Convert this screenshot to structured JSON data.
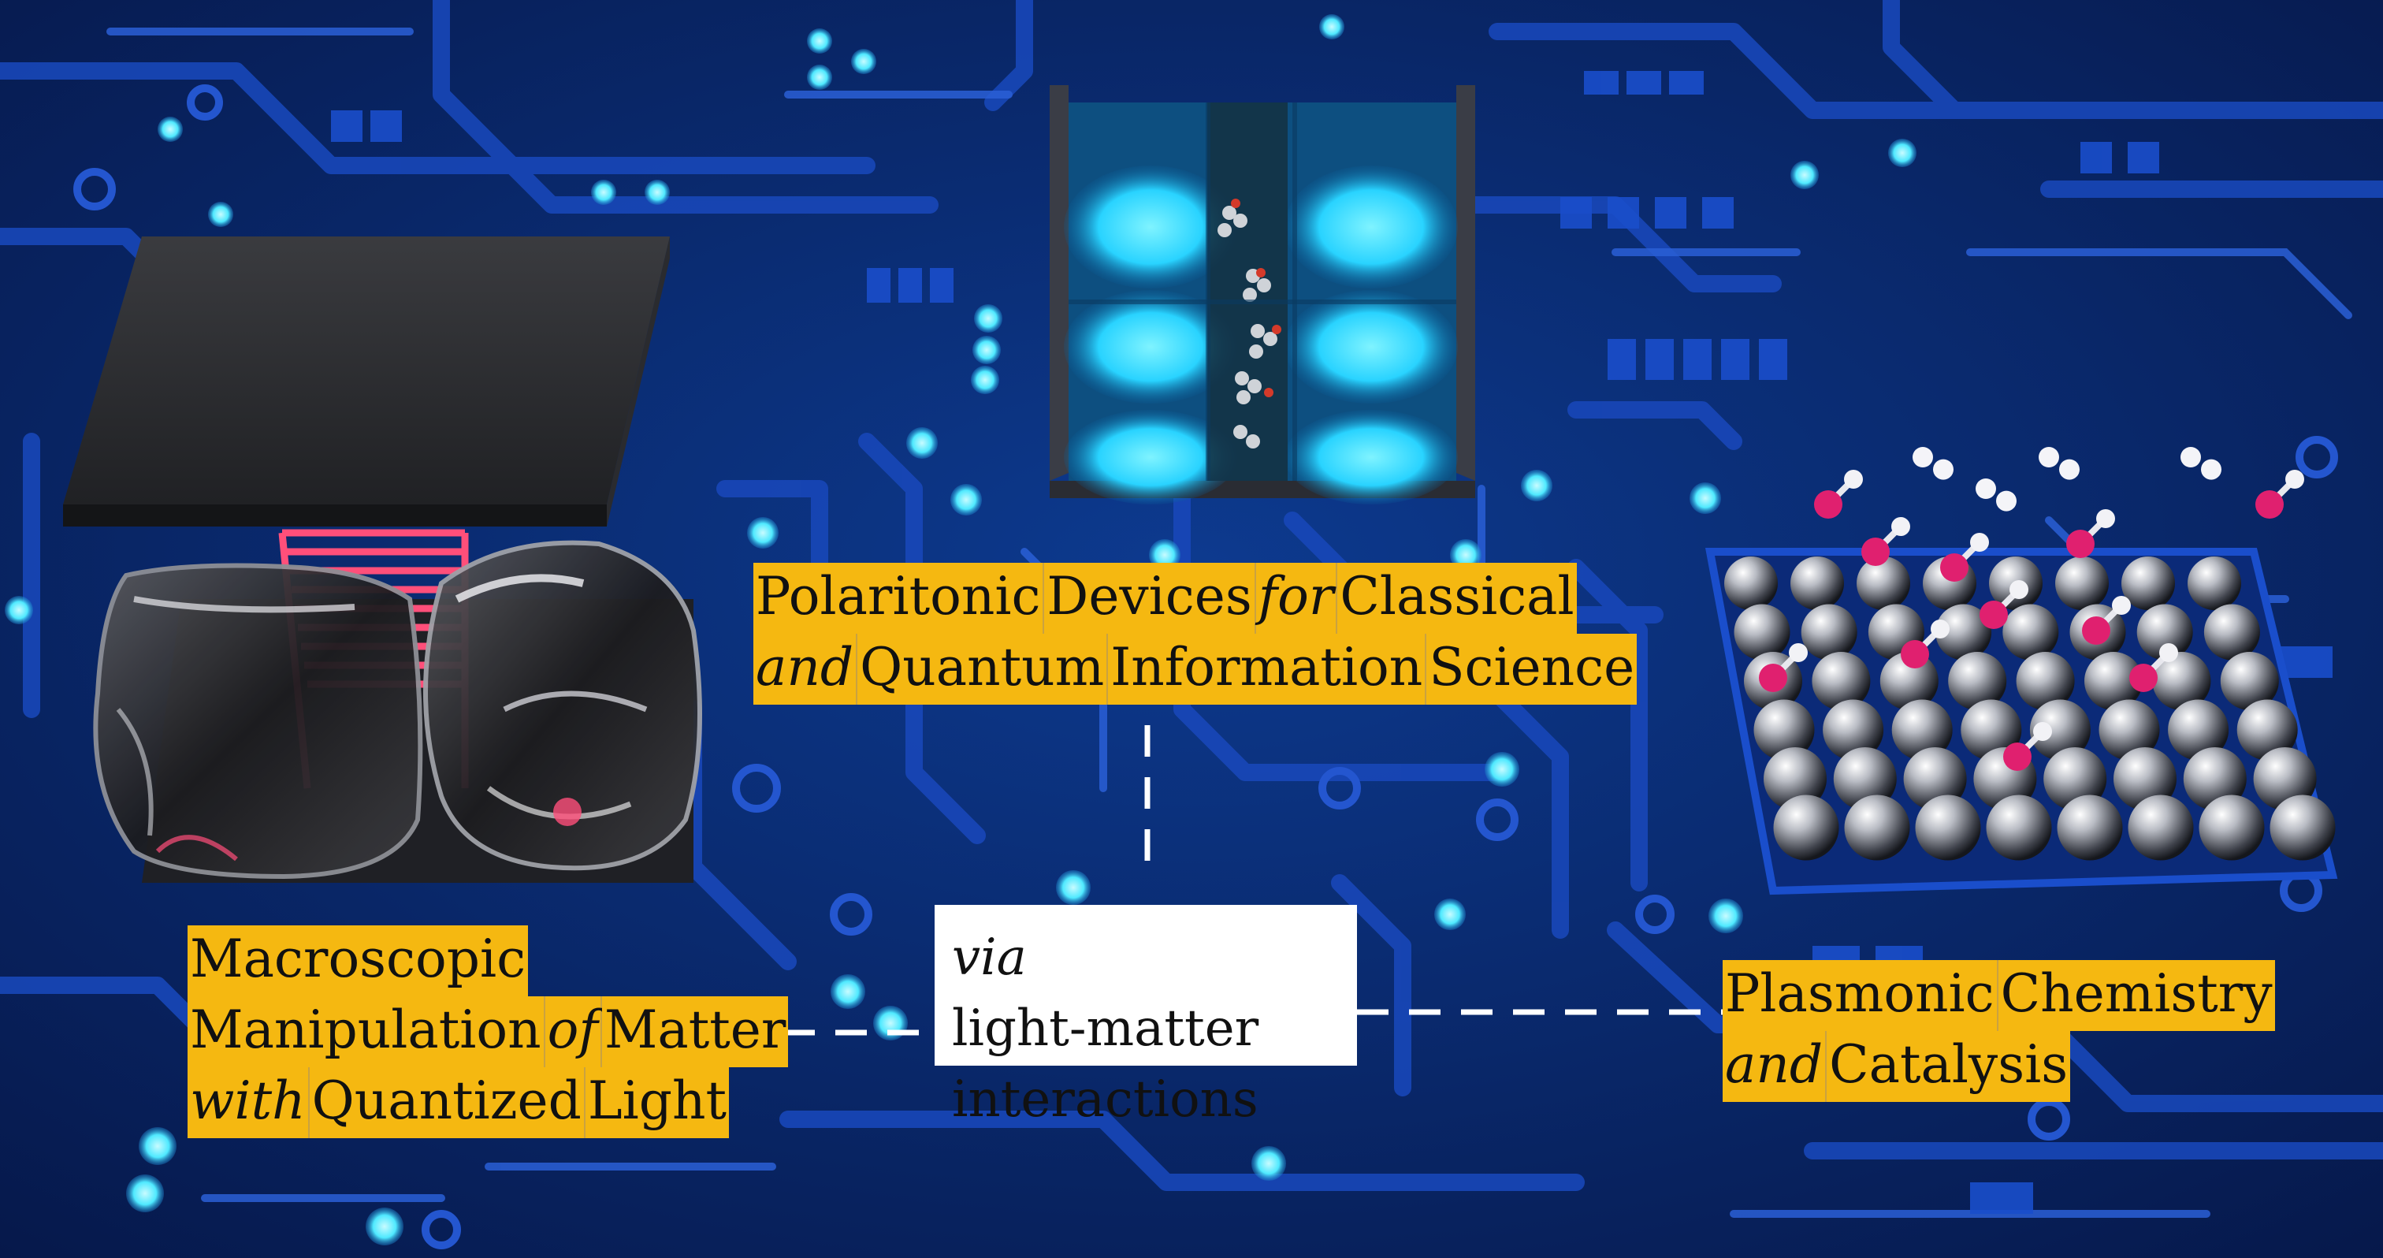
{
  "labels": {
    "polaritonic": {
      "line1": [
        "Polaritonic",
        "Devices",
        "for",
        "Classical"
      ],
      "line2": [
        "and",
        "Quantum",
        "Information",
        "Science"
      ]
    },
    "macroscopic": {
      "line1": [
        "Macroscopic"
      ],
      "line2": [
        "Manipulation",
        "of",
        "Matter"
      ],
      "line3": [
        "with",
        "Quantized",
        "Light"
      ]
    },
    "plasmonic": {
      "line1": [
        "Plasmonic",
        "Chemistry"
      ],
      "line2": [
        "and",
        "Catalysis"
      ]
    },
    "center": {
      "via": "via",
      "rest1": "light-matter",
      "line2": "interactions"
    }
  },
  "colors": {
    "background": "#0a2a6b",
    "trace": "#1847b8",
    "trace_light": "#2a5fd6",
    "led": "#4fe9ff",
    "label_bg": "#f5b811",
    "connector": "#ffffff",
    "molecule_accent": "#e0206f",
    "cavity_glow": "#29d3ff"
  }
}
